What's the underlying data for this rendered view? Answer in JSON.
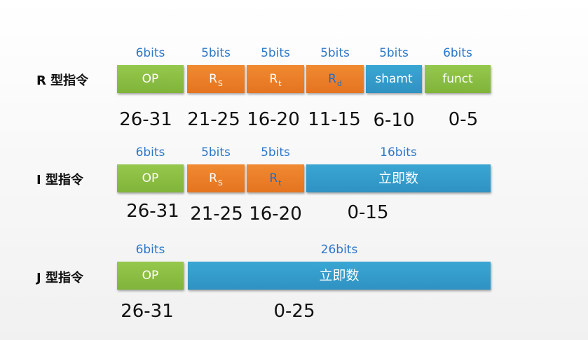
{
  "r_type": {
    "label": "R 型指令",
    "fields": [
      {
        "bits": "6bits",
        "name": "OP",
        "range": "26-31"
      },
      {
        "bits": "5bits",
        "name": "R",
        "sub": "S",
        "range": "21-25"
      },
      {
        "bits": "5bits",
        "name": "R",
        "sub": "t",
        "range": "16-20"
      },
      {
        "bits": "5bits",
        "name": "R",
        "sub": "d",
        "range": "11-15"
      },
      {
        "bits": "5bits",
        "name": "shamt",
        "range": "6-10"
      },
      {
        "bits": "6bits",
        "name": "funct",
        "range": "0-5"
      }
    ]
  },
  "i_type": {
    "label": "I 型指令",
    "fields": [
      {
        "bits": "6bits",
        "name": "OP",
        "range": "26-31"
      },
      {
        "bits": "5bits",
        "name": "R",
        "sub": "S",
        "range": "21-25"
      },
      {
        "bits": "5bits",
        "name": "R",
        "sub": "t",
        "range": "16-20"
      },
      {
        "bits": "16bits",
        "name": "立即数",
        "range": "0-15"
      }
    ]
  },
  "j_type": {
    "label": "J 型指令",
    "fields": [
      {
        "bits": "6bits",
        "name": "OP",
        "range": "26-31"
      },
      {
        "bits": "26bits",
        "name": "立即数",
        "range": "0-25"
      }
    ]
  },
  "colors": {
    "op_green": "#8cbf45",
    "register_orange": "#ec7f2a",
    "field_blue": "#349dcb",
    "bits_label_blue": "#2e77c9"
  }
}
